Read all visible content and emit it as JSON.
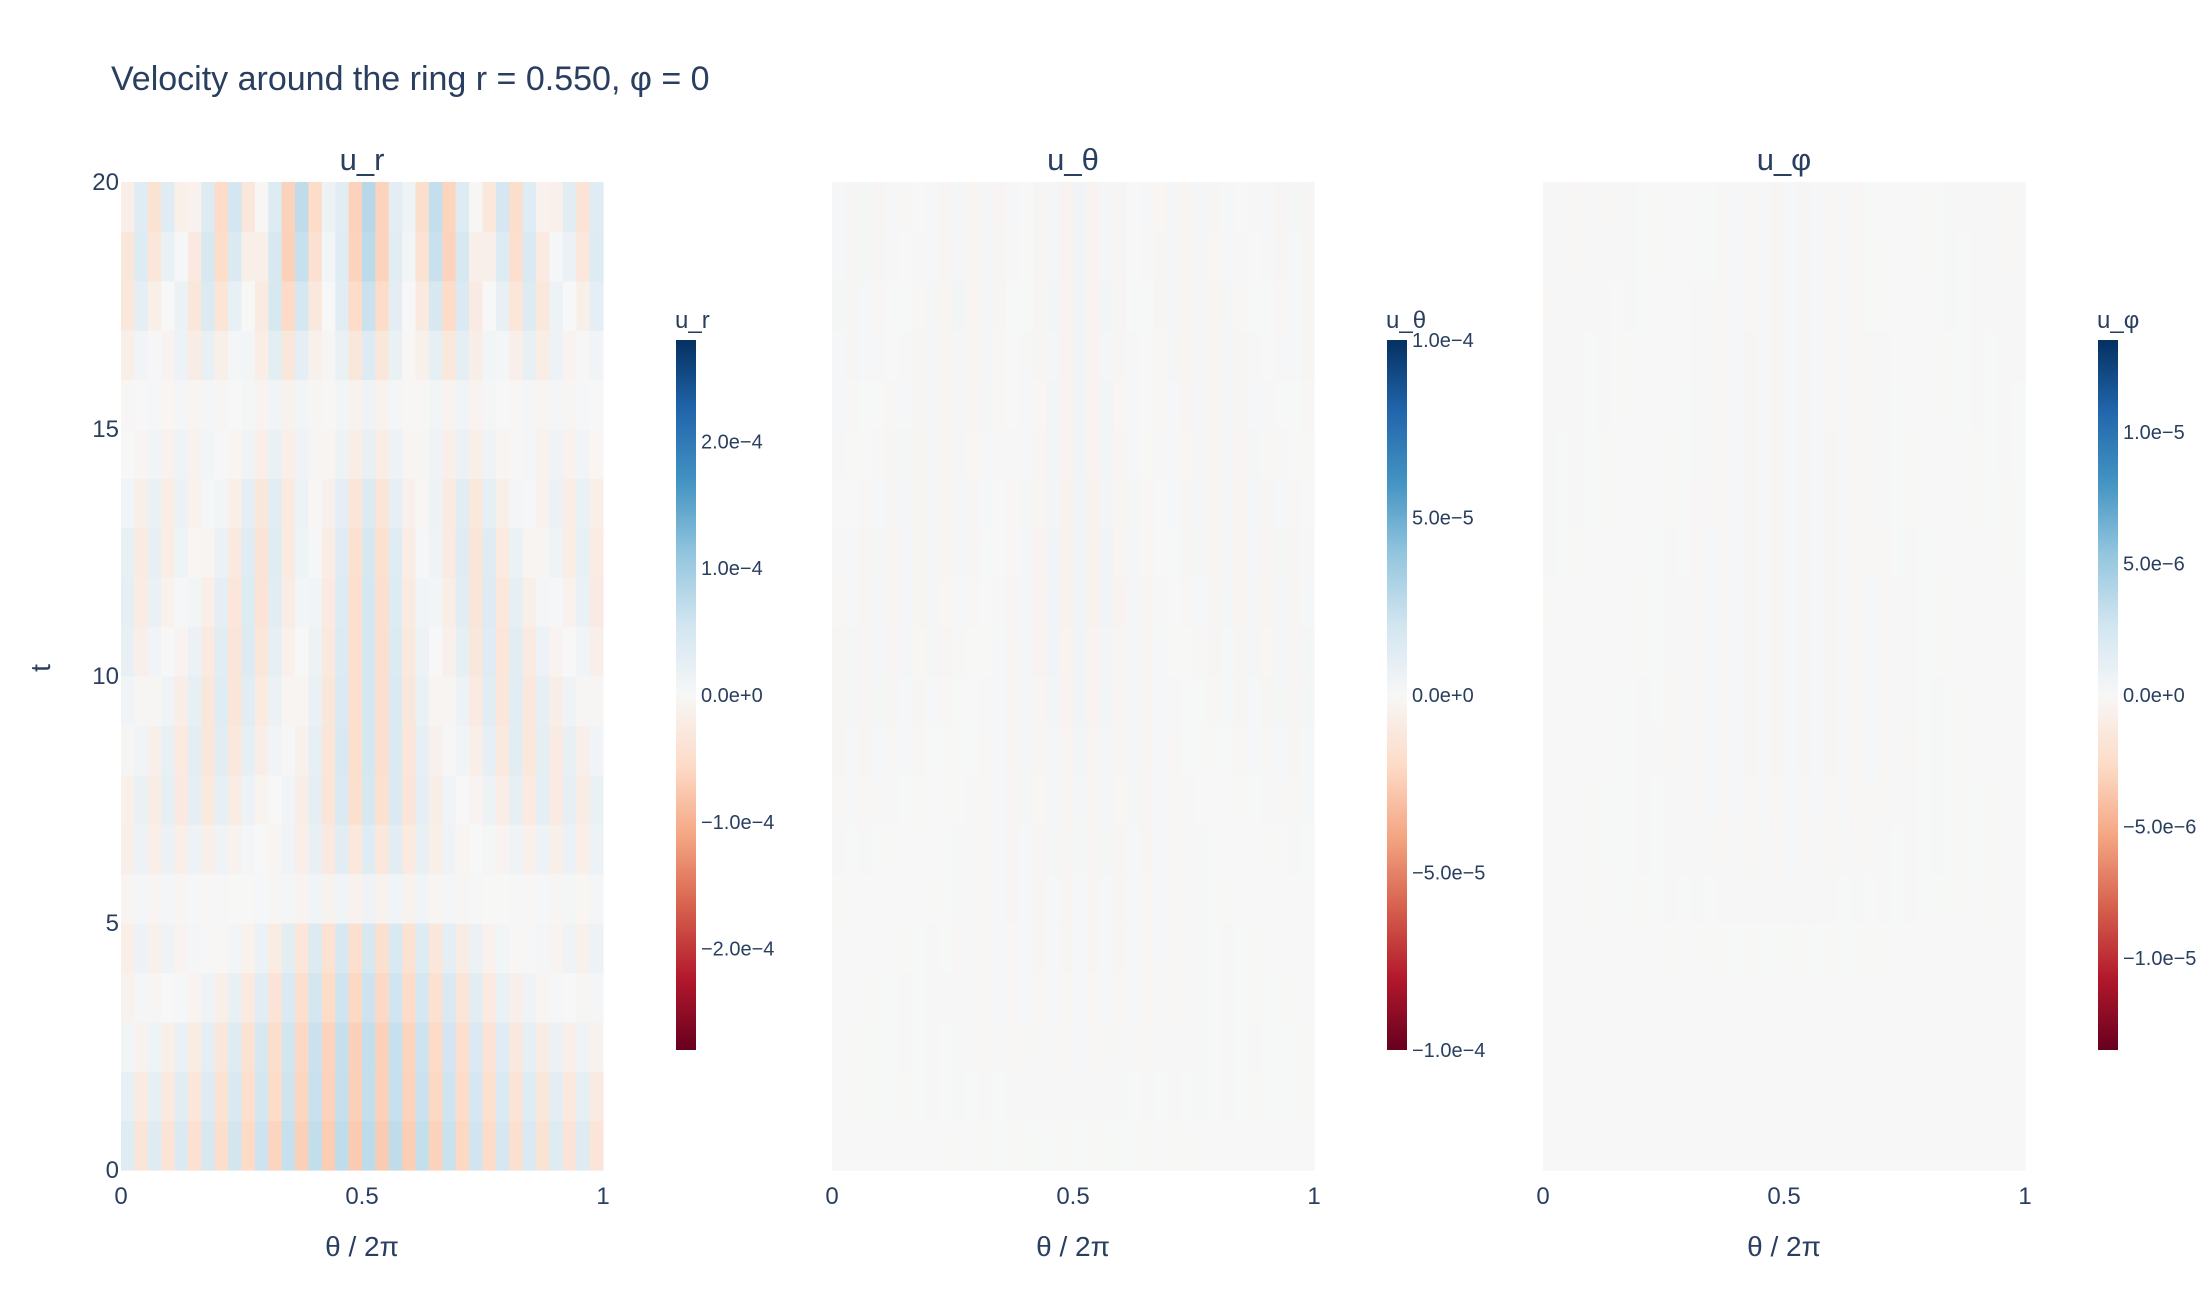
{
  "chart_data": {
    "type": "heatmap",
    "title": "Velocity around the ring r = 0.550, φ = 0",
    "ylabel": "t",
    "colorscale": "RdBu",
    "colorscale_stops": [
      "#67001f",
      "#b2182b",
      "#d6604d",
      "#f4a582",
      "#fddbc7",
      "#f7f7f7",
      "#d1e5f0",
      "#92c5de",
      "#4393c3",
      "#2166ac",
      "#053061"
    ],
    "y_ticks": [
      "0",
      "5",
      "10",
      "15",
      "20"
    ],
    "y_range": [
      0,
      20
    ],
    "x_range": [
      0,
      1
    ],
    "panels": [
      {
        "name": "u_r",
        "xlabel": "θ / 2π",
        "x_ticks": [
          "0",
          "0.5",
          "1"
        ],
        "colorbar_title": "u_r",
        "colorbar_ticks": [
          {
            "label": "2.0e−4",
            "value": 0.0002
          },
          {
            "label": "1.0e−4",
            "value": 0.0001
          },
          {
            "label": "0.0e+0",
            "value": 0
          },
          {
            "label": "−1.0e−4",
            "value": -0.0001
          },
          {
            "label": "−2.0e−4",
            "value": -0.0002
          }
        ],
        "zmin": -0.00028,
        "zmax": 0.00028,
        "n_theta": 36,
        "n_t": 20,
        "pattern": {
          "harmonic": 18,
          "drift": 0.03,
          "max_amp": 0.00028,
          "amplitude_by_t": [
            0.26,
            0.24,
            0.24,
            0.21,
            0.17,
            0.04,
            0.12,
            0.17,
            0.18,
            0.18,
            0.18,
            0.18,
            0.17,
            0.14,
            0.08,
            0.04,
            0.13,
            0.22,
            0.27,
            0.28
          ]
        }
      },
      {
        "name": "u_θ",
        "xlabel": "θ / 2π",
        "x_ticks": [
          "0",
          "0.5",
          "1"
        ],
        "colorbar_title": "u_θ",
        "colorbar_ticks": [
          {
            "label": "1.0e−4",
            "value": 0.0001
          },
          {
            "label": "5.0e−5",
            "value": 5e-05
          },
          {
            "label": "0.0e+0",
            "value": 0
          },
          {
            "label": "−5.0e−5",
            "value": -5e-05
          },
          {
            "label": "−1.0e−4",
            "value": -0.0001
          }
        ],
        "zmin": -0.0001,
        "zmax": 0.0001,
        "n_theta": 36,
        "n_t": 20,
        "pattern": {
          "harmonic": 18,
          "drift": 0.02,
          "max_amp": 0.0001,
          "amplitude_by_t": [
            0.003,
            0.006,
            0.008,
            0.01,
            0.012,
            0.014,
            0.016,
            0.02,
            0.025,
            0.03,
            0.032,
            0.035,
            0.035,
            0.034,
            0.032,
            0.03,
            0.03,
            0.032,
            0.03,
            0.03
          ]
        }
      },
      {
        "name": "u_φ",
        "xlabel": "θ / 2π",
        "x_ticks": [
          "0",
          "0.5",
          "1"
        ],
        "colorbar_title": "u_φ",
        "colorbar_ticks": [
          {
            "label": "1.0e−5",
            "value": 1e-05
          },
          {
            "label": "5.0e−6",
            "value": 5e-06
          },
          {
            "label": "0.0e+0",
            "value": 0
          },
          {
            "label": "−5.0e−6",
            "value": -5e-06
          },
          {
            "label": "−1.0e−5",
            "value": -1e-05
          }
        ],
        "zmin": -1.35e-05,
        "zmax": 1.35e-05,
        "n_theta": 36,
        "n_t": 20,
        "pattern": {
          "harmonic": 18,
          "drift": 0.01,
          "max_amp": 1.35e-05,
          "amplitude_by_t": [
            0.0,
            0.0008,
            0.0015,
            0.002,
            0.003,
            0.006,
            0.008,
            0.01,
            0.012,
            0.0125,
            0.0125,
            0.0125,
            0.0125,
            0.0125,
            0.0125,
            0.0125,
            0.0125,
            0.0125,
            0.0125,
            0.0125
          ]
        }
      }
    ]
  }
}
